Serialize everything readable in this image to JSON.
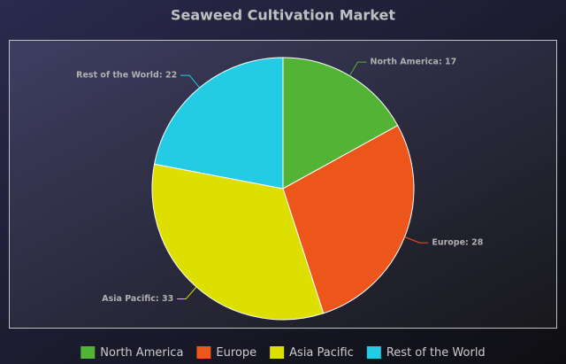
{
  "chart_data": {
    "type": "pie",
    "title": "Seaweed Cultivation Market",
    "categories": [
      "North America",
      "Europe",
      "Asia Pacific",
      "Rest of the World"
    ],
    "values": [
      17,
      28,
      33,
      22
    ],
    "value_labels": [
      "North America: 17",
      "Europe: 28",
      "Asia Pacific: 33",
      "Rest of the World: 22"
    ],
    "colors": [
      "#52b335",
      "#ec561b",
      "#dddf00",
      "#24cbe5"
    ],
    "legend": "bottom"
  }
}
